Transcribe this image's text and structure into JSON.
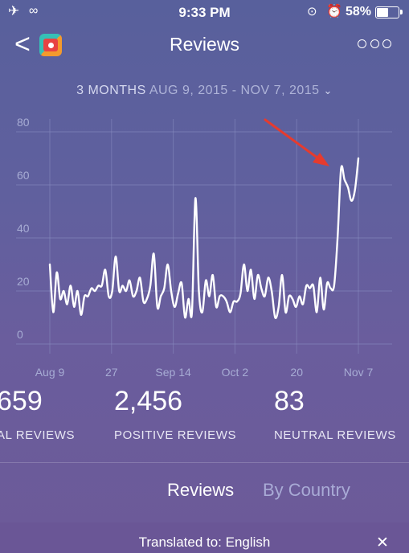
{
  "status_bar": {
    "time": "9:33 PM",
    "battery": "58%",
    "battery_level": 0.58
  },
  "nav": {
    "back": "<",
    "title": "Reviews"
  },
  "range": {
    "period": "3 MONTHS",
    "dates": "AUG 9, 2015 - NOV 7, 2015"
  },
  "chart_data": {
    "type": "line",
    "title": "",
    "xlabel": "",
    "ylabel": "",
    "ylim": [
      0,
      80
    ],
    "yticks": [
      "80",
      "60",
      "40",
      "20",
      "0"
    ],
    "xticks": [
      "Aug 9",
      "27",
      "Sep 14",
      "Oct 2",
      "20",
      "Nov 7"
    ],
    "x_start": "Aug 9",
    "x_end": "Nov 7",
    "grid": true,
    "series": [
      {
        "name": "",
        "values": [
          30,
          12,
          27,
          17,
          20,
          15,
          22,
          14,
          20,
          11,
          18,
          18,
          21,
          20,
          22,
          22,
          28,
          18,
          20,
          33,
          20,
          22,
          20,
          24,
          18,
          20,
          25,
          16,
          17,
          22,
          34,
          14,
          18,
          21,
          30,
          20,
          14,
          19,
          23,
          10,
          17,
          12,
          55,
          20,
          12,
          24,
          18,
          26,
          14,
          18,
          18,
          16,
          12,
          16,
          16,
          19,
          30,
          20,
          28,
          17,
          26,
          21,
          18,
          25,
          20,
          10,
          14,
          26,
          12,
          18,
          17,
          14,
          18,
          15,
          22,
          21,
          22,
          12,
          25,
          13,
          23,
          21,
          22,
          40,
          66,
          62,
          59,
          54,
          58,
          70
        ]
      }
    ],
    "annotation": "red-arrow-pointing-at-peak"
  },
  "stats": [
    {
      "value": "659",
      "label": "AL REVIEWS"
    },
    {
      "value": "2,456",
      "label": "POSITIVE REVIEWS"
    },
    {
      "value": "83",
      "label": "NEUTRAL REVIEWS"
    }
  ],
  "tabs": [
    {
      "label": "Reviews"
    },
    {
      "label": "By Country"
    }
  ],
  "translated": {
    "text": "Translated to: English"
  },
  "colors": {
    "arrow": "#e63b2e",
    "line": "#ffffff",
    "grid": "#8c91c4",
    "tab_inactive": "#a9abd6"
  }
}
